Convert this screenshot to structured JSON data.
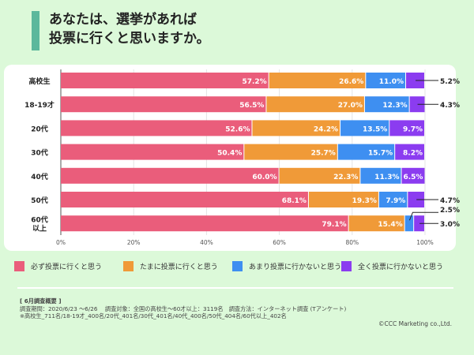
{
  "title_lines": [
    "あなたは、選挙があれば",
    "投票に行くと思いますか。"
  ],
  "colors": {
    "accent": "#5cb89c",
    "background": "#dcf9d9"
  },
  "chart_data": {
    "type": "bar",
    "orientation": "horizontal",
    "stacked": true,
    "categories": [
      "高校生",
      "18-19才",
      "20代",
      "30代",
      "40代",
      "50代",
      "60代以上"
    ],
    "series": [
      {
        "name": "必ず投票に行くと思う",
        "color": "#ea5d7b",
        "values": [
          57.2,
          56.5,
          52.6,
          50.4,
          60.0,
          68.1,
          79.1
        ]
      },
      {
        "name": "たまに投票に行くと思う",
        "color": "#f09a38",
        "values": [
          26.6,
          27.0,
          24.2,
          25.7,
          22.3,
          19.3,
          15.4
        ]
      },
      {
        "name": "あまり投票に行かないと思う",
        "color": "#3e8ff1",
        "values": [
          11.0,
          12.3,
          13.5,
          15.7,
          11.3,
          7.9,
          2.5
        ]
      },
      {
        "name": "全く投票に行かないと思う",
        "color": "#8b3cf0",
        "values": [
          5.2,
          4.3,
          9.7,
          8.2,
          6.5,
          4.7,
          3.0
        ]
      }
    ],
    "xticks": [
      "0%",
      "20%",
      "40%",
      "60%",
      "80%",
      "100%"
    ],
    "xlim": [
      0,
      100
    ],
    "grid": true,
    "legend": "bottom"
  },
  "summary": {
    "heading": "[ 6月調査概要 ]",
    "line1": "調査期間：2020/6/23 ～6/26　 調査対象：全国の高校生～60才以上：3119名　調査方法：インターネット調査 (Tアンケート)",
    "line2": "※高校生_711名/18-19才_400名/20代_401名/30代_401名/40代_400名/50代_404名/60代以上_402名"
  },
  "copyright": "©CCC Marketing co.,Ltd."
}
